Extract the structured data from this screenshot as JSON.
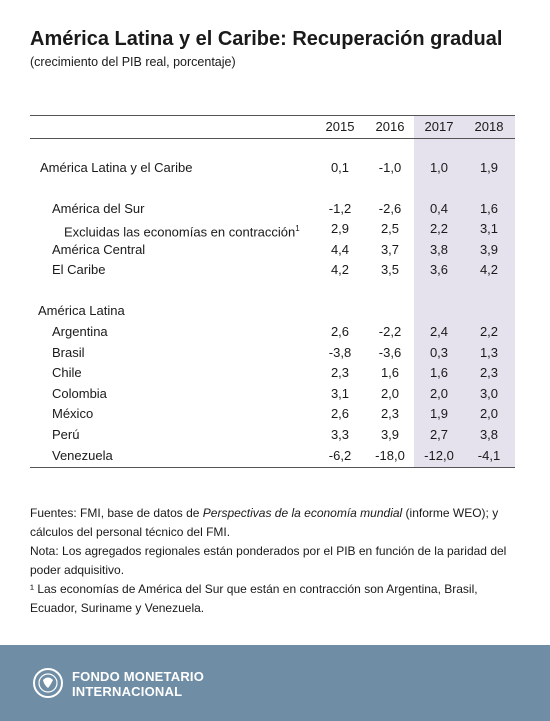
{
  "header": {
    "title": "América Latina y el Caribe: Recuperación gradual",
    "subtitle": "(crecimiento del PIB real, porcentaje)"
  },
  "table": {
    "columns": [
      "2015",
      "2016",
      "2017",
      "2018"
    ],
    "rows": [
      {
        "label": "América Latina y el Caribe",
        "values": [
          "0,1",
          "-1,0",
          "1,0",
          "1,9"
        ]
      },
      {
        "label": "América del Sur",
        "values": [
          "-1,2",
          "-2,6",
          "0,4",
          "1,6"
        ]
      },
      {
        "label": "Excluidas las economías en contracción",
        "superscript": "1",
        "values": [
          "2,9",
          "2,5",
          "2,2",
          "3,1"
        ]
      },
      {
        "label": "América Central",
        "values": [
          "4,4",
          "3,7",
          "3,8",
          "3,9"
        ]
      },
      {
        "label": "El Caribe",
        "values": [
          "4,2",
          "3,5",
          "3,6",
          "4,2"
        ]
      },
      {
        "label": "América Latina",
        "values": null
      },
      {
        "label": "Argentina",
        "values": [
          "2,6",
          "-2,2",
          "2,4",
          "2,2"
        ]
      },
      {
        "label": "Brasil",
        "values": [
          "-3,8",
          "-3,6",
          "0,3",
          "1,3"
        ]
      },
      {
        "label": "Chile",
        "values": [
          "2,3",
          "1,6",
          "1,6",
          "2,3"
        ]
      },
      {
        "label": "Colombia",
        "values": [
          "3,1",
          "2,0",
          "2,0",
          "3,0"
        ]
      },
      {
        "label": "México",
        "values": [
          "2,6",
          "2,3",
          "1,9",
          "2,0"
        ]
      },
      {
        "label": "Perú",
        "values": [
          "3,3",
          "3,9",
          "2,7",
          "3,8"
        ]
      },
      {
        "label": "Venezuela",
        "values": [
          "-6,2",
          "-18,0",
          "-12,0",
          "-4,1"
        ]
      }
    ]
  },
  "notes": [
    [
      "Fuentes: FMI, base de datos de ",
      "Perspectivas de la economía mundial",
      " (informe WEO); y cálculos del personal técnico del FMI."
    ],
    [
      "Nota: Los agregados regionales están ponderados por el PIB en función de la paridad del poder adquisitivo."
    ],
    [
      "¹ Las economías de América del Sur que están en contracción son Argentina, Brasil, Ecuador, Suriname y Venezuela."
    ]
  ],
  "footer": {
    "org_line1": "FONDO MONETARIO",
    "org_line2": "INTERNACIONAL"
  }
}
